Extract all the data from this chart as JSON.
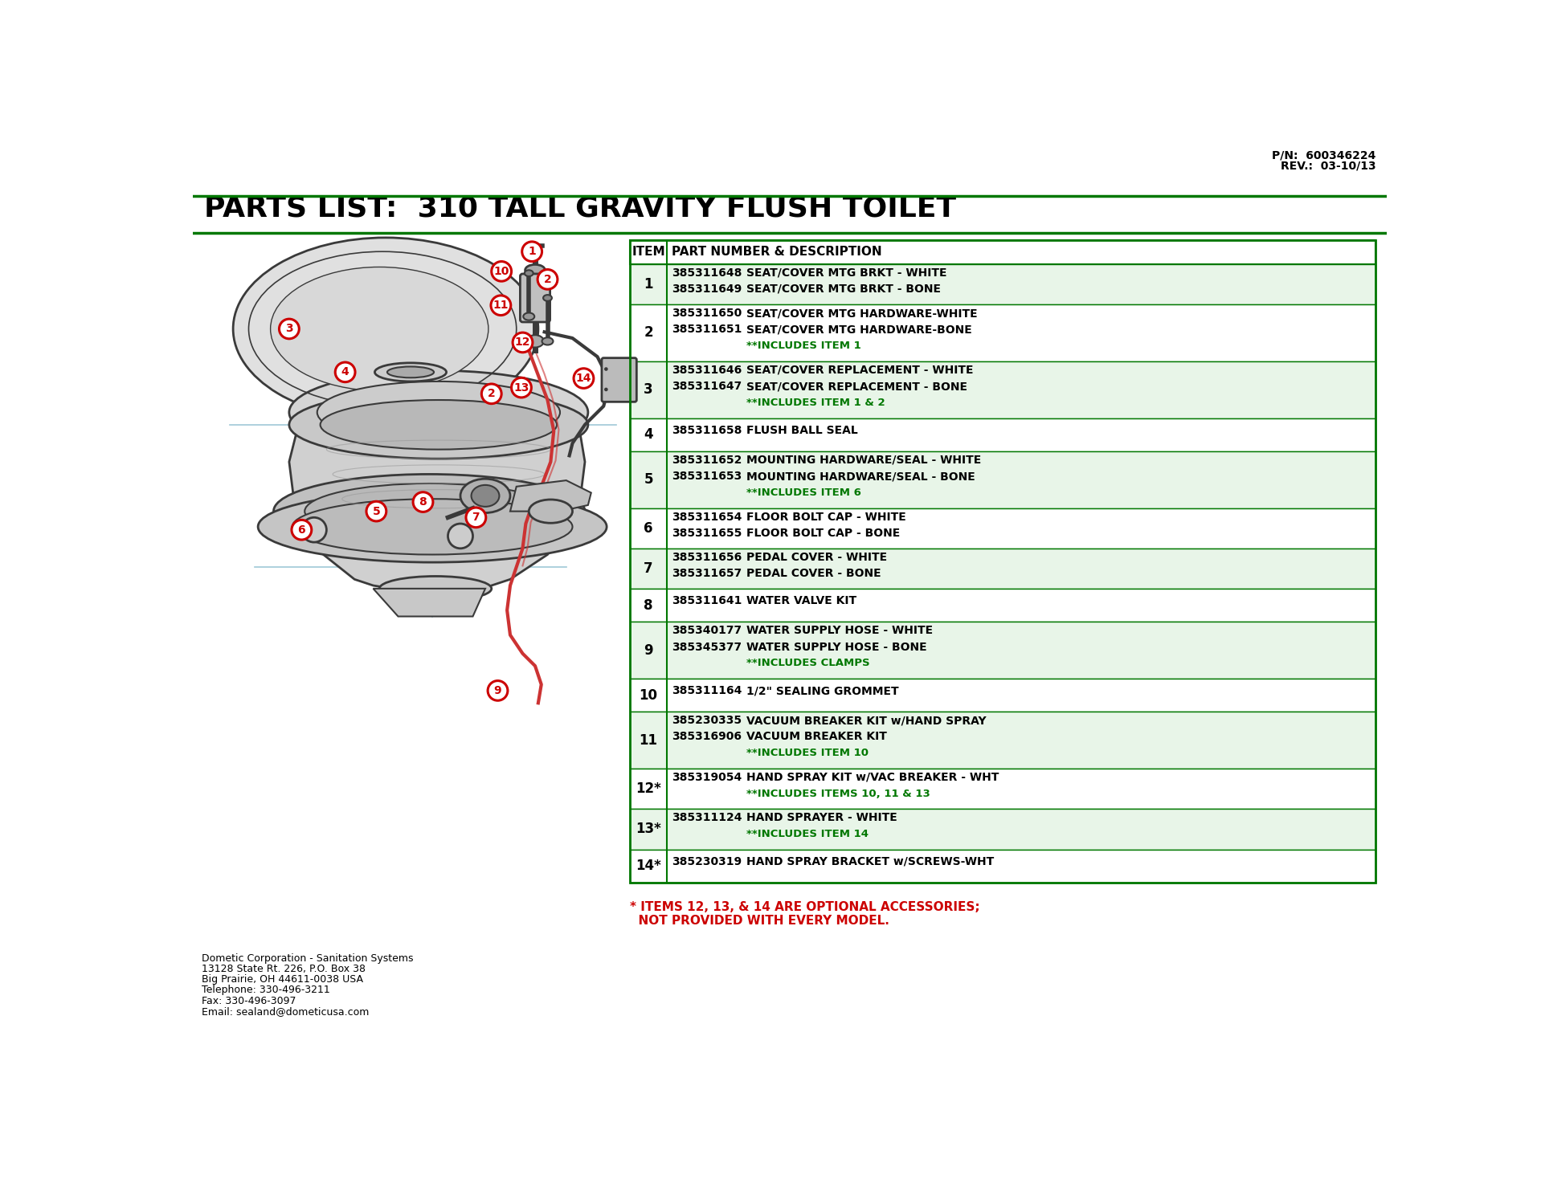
{
  "title": "PARTS LIST:  310 TALL GRAVITY FLUSH TOILET",
  "background_color": "#ffffff",
  "green_line_color": "#007700",
  "pn_text": "P/N:  600346224",
  "rev_text": "REV.:  03-10/13",
  "table_rows": [
    {
      "item": "1",
      "parts": [
        {
          "pn": "385311648",
          "desc": "SEAT/COVER MTG BRKT - WHITE"
        },
        {
          "pn": "385311649",
          "desc": "SEAT/COVER MTG BRKT - BONE"
        }
      ],
      "note": null
    },
    {
      "item": "2",
      "parts": [
        {
          "pn": "385311650",
          "desc": "SEAT/COVER MTG HARDWARE-WHITE"
        },
        {
          "pn": "385311651",
          "desc": "SEAT/COVER MTG HARDWARE-BONE"
        }
      ],
      "note": "**INCLUDES ITEM 1"
    },
    {
      "item": "3",
      "parts": [
        {
          "pn": "385311646",
          "desc": "SEAT/COVER REPLACEMENT - WHITE"
        },
        {
          "pn": "385311647",
          "desc": "SEAT/COVER REPLACEMENT - BONE"
        }
      ],
      "note": "**INCLUDES ITEM 1 & 2"
    },
    {
      "item": "4",
      "parts": [
        {
          "pn": "385311658",
          "desc": "FLUSH BALL SEAL"
        }
      ],
      "note": null
    },
    {
      "item": "5",
      "parts": [
        {
          "pn": "385311652",
          "desc": "MOUNTING HARDWARE/SEAL - WHITE"
        },
        {
          "pn": "385311653",
          "desc": "MOUNTING HARDWARE/SEAL - BONE"
        }
      ],
      "note": "**INCLUDES ITEM 6"
    },
    {
      "item": "6",
      "parts": [
        {
          "pn": "385311654",
          "desc": "FLOOR BOLT CAP - WHITE"
        },
        {
          "pn": "385311655",
          "desc": "FLOOR BOLT CAP - BONE"
        }
      ],
      "note": null
    },
    {
      "item": "7",
      "parts": [
        {
          "pn": "385311656",
          "desc": "PEDAL COVER - WHITE"
        },
        {
          "pn": "385311657",
          "desc": "PEDAL COVER - BONE"
        }
      ],
      "note": null
    },
    {
      "item": "8",
      "parts": [
        {
          "pn": "385311641",
          "desc": "WATER VALVE KIT"
        }
      ],
      "note": null
    },
    {
      "item": "9",
      "parts": [
        {
          "pn": "385340177",
          "desc": "WATER SUPPLY HOSE - WHITE"
        },
        {
          "pn": "385345377",
          "desc": "WATER SUPPLY HOSE - BONE"
        }
      ],
      "note": "**INCLUDES CLAMPS"
    },
    {
      "item": "10",
      "parts": [
        {
          "pn": "385311164",
          "desc": "1/2\" SEALING GROMMET"
        }
      ],
      "note": null
    },
    {
      "item": "11",
      "parts": [
        {
          "pn": "385230335",
          "desc": "VACUUM BREAKER KIT w/HAND SPRAY"
        },
        {
          "pn": "385316906",
          "desc": "VACUUM BREAKER KIT"
        }
      ],
      "note": "**INCLUDES ITEM 10"
    },
    {
      "item": "12*",
      "parts": [
        {
          "pn": "385319054",
          "desc": "HAND SPRAY KIT w/VAC BREAKER - WHT"
        }
      ],
      "note": "**INCLUDES ITEMS 10, 11 & 13"
    },
    {
      "item": "13*",
      "parts": [
        {
          "pn": "385311124",
          "desc": "HAND SPRAYER - WHITE"
        }
      ],
      "note": "**INCLUDES ITEM 14"
    },
    {
      "item": "14*",
      "parts": [
        {
          "pn": "385230319",
          "desc": "HAND SPRAY BRACKET w/SCREWS-WHT"
        }
      ],
      "note": null
    }
  ],
  "footer_note_line1": "* ITEMS 12, 13, & 14 ARE OPTIONAL ACCESSORIES;",
  "footer_note_line2": "  NOT PROVIDED WITH EVERY MODEL.",
  "contact_info": [
    "Dometic Corporation - Sanitation Systems",
    "13128 State Rt. 226, P.O. Box 38",
    "Big Prairie, OH 44611-0038 USA",
    "Telephone: 330-496-3211",
    "Fax: 330-496-3097",
    "Email: sealand@dometicusa.com"
  ],
  "green_color": "#007700",
  "red_color": "#cc0000",
  "black_color": "#000000"
}
